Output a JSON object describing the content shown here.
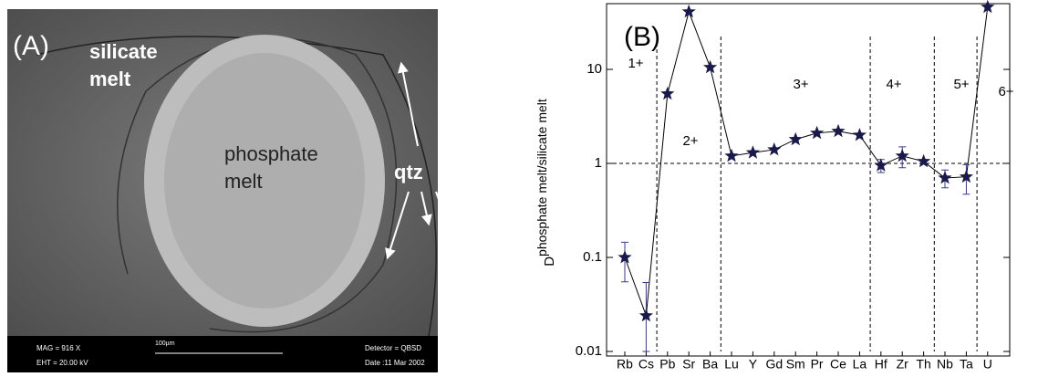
{
  "panel_a": {
    "label": "(A)",
    "silicate": [
      "silicate",
      "melt"
    ],
    "phosphate": [
      "phosphate",
      "melt"
    ],
    "qtz": "qtz",
    "footer": {
      "mag": "MAG =  916 X",
      "eht": "EHT = 20.00 kV",
      "scale": "100µm",
      "detector": "Detector = QBSD",
      "date": "Date :11 Mar 2002"
    }
  },
  "chart_data": {
    "type": "line",
    "panel_label": "(B)",
    "ylabel": "D",
    "ylabel_sub": "phosphate melt/silicate melt",
    "categories": [
      "Rb",
      "Cs",
      "Pb",
      "Sr",
      "Ba",
      "Lu",
      "Y",
      "Gd",
      "Sm",
      "Pr",
      "Ce",
      "La",
      "Hf",
      "Zr",
      "Th",
      "Nb",
      "Ta",
      "U"
    ],
    "series": [
      {
        "name": "D",
        "color": "#1a1a4a",
        "values": [
          0.1,
          0.024,
          5.5,
          41,
          10.5,
          1.2,
          1.3,
          1.4,
          1.8,
          2.1,
          2.2,
          2.0,
          0.95,
          1.2,
          1.05,
          0.7,
          0.72,
          46
        ],
        "errors": [
          0.045,
          0.03,
          null,
          null,
          null,
          null,
          null,
          null,
          null,
          null,
          null,
          null,
          0.15,
          0.3,
          null,
          0.15,
          0.25,
          null
        ]
      }
    ],
    "ylim": [
      0.01,
      50
    ],
    "log_y": true,
    "yticks": [
      0.01,
      0.1,
      1,
      10
    ],
    "hline": 1,
    "annotations": [
      "1+",
      "2+",
      "3+",
      "4+",
      "5+",
      "6+"
    ]
  }
}
